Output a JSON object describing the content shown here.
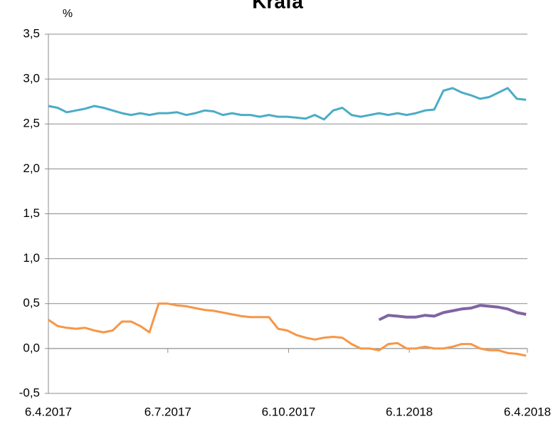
{
  "chart_data": {
    "type": "line",
    "title": "Krafa",
    "y_label": "%",
    "x": [
      "2017-04-06",
      "2017-04-13",
      "2017-04-20",
      "2017-04-27",
      "2017-05-04",
      "2017-05-11",
      "2017-05-18",
      "2017-05-25",
      "2017-06-01",
      "2017-06-08",
      "2017-06-15",
      "2017-06-22",
      "2017-06-29",
      "2017-07-06",
      "2017-07-13",
      "2017-07-20",
      "2017-07-27",
      "2017-08-03",
      "2017-08-10",
      "2017-08-17",
      "2017-08-24",
      "2017-08-31",
      "2017-09-07",
      "2017-09-14",
      "2017-09-21",
      "2017-09-28",
      "2017-10-05",
      "2017-10-12",
      "2017-10-19",
      "2017-10-26",
      "2017-11-02",
      "2017-11-09",
      "2017-11-16",
      "2017-11-23",
      "2017-11-30",
      "2017-12-07",
      "2017-12-14",
      "2017-12-21",
      "2017-12-28",
      "2018-01-04",
      "2018-01-11",
      "2018-01-18",
      "2018-01-25",
      "2018-02-01",
      "2018-02-08",
      "2018-02-15",
      "2018-02-22",
      "2018-03-01",
      "2018-03-08",
      "2018-03-15",
      "2018-03-22",
      "2018-03-29",
      "2018-04-05"
    ],
    "series": [
      {
        "color": "#4bacc6",
        "values": [
          2.7,
          2.68,
          2.63,
          2.65,
          2.67,
          2.7,
          2.68,
          2.65,
          2.62,
          2.6,
          2.62,
          2.6,
          2.62,
          2.62,
          2.63,
          2.6,
          2.62,
          2.65,
          2.64,
          2.6,
          2.62,
          2.6,
          2.6,
          2.58,
          2.6,
          2.58,
          2.58,
          2.57,
          2.56,
          2.6,
          2.55,
          2.65,
          2.68,
          2.6,
          2.58,
          2.6,
          2.62,
          2.6,
          2.62,
          2.6,
          2.62,
          2.65,
          2.66,
          2.87,
          2.9,
          2.85,
          2.82,
          2.78,
          2.8,
          2.85,
          2.9,
          2.78,
          2.77
        ]
      },
      {
        "color": "#f79646",
        "values": [
          0.32,
          0.25,
          0.23,
          0.22,
          0.23,
          0.2,
          0.18,
          0.2,
          0.3,
          0.3,
          0.25,
          0.18,
          0.5,
          0.5,
          0.48,
          0.47,
          0.45,
          0.43,
          0.42,
          0.4,
          0.38,
          0.36,
          0.35,
          0.35,
          0.35,
          0.22,
          0.2,
          0.15,
          0.12,
          0.1,
          0.12,
          0.13,
          0.12,
          0.05,
          0.0,
          0.0,
          -0.02,
          0.05,
          0.06,
          0.0,
          0.0,
          0.02,
          0.0,
          0.0,
          0.02,
          0.05,
          0.05,
          0.0,
          -0.02,
          -0.02,
          -0.05,
          -0.06,
          -0.08
        ]
      },
      {
        "color": "#8064a2",
        "values": [
          null,
          null,
          null,
          null,
          null,
          null,
          null,
          null,
          null,
          null,
          null,
          null,
          null,
          null,
          null,
          null,
          null,
          null,
          null,
          null,
          null,
          null,
          null,
          null,
          null,
          null,
          null,
          null,
          null,
          null,
          null,
          null,
          null,
          null,
          null,
          null,
          0.32,
          0.37,
          0.36,
          0.35,
          0.35,
          0.37,
          0.36,
          0.4,
          0.42,
          0.44,
          0.45,
          0.48,
          0.47,
          0.46,
          0.44,
          0.4,
          0.38
        ]
      }
    ],
    "xlim": [
      "2017-04-06",
      "2018-04-06"
    ],
    "xticks": [
      {
        "value": "2017-04-06",
        "label": "6.4.2017"
      },
      {
        "value": "2017-07-06",
        "label": "6.7.2017"
      },
      {
        "value": "2017-10-06",
        "label": "6.10.2017"
      },
      {
        "value": "2018-01-06",
        "label": "6.1.2018"
      },
      {
        "value": "2018-04-06",
        "label": "6.4.2018"
      }
    ],
    "ylim": [
      -0.5,
      3.5
    ],
    "yticks": [
      {
        "value": -0.5,
        "label": "-0,5"
      },
      {
        "value": 0,
        "label": "0,0"
      },
      {
        "value": 0.5,
        "label": "0,5"
      },
      {
        "value": 1,
        "label": "1,0"
      },
      {
        "value": 1.5,
        "label": "1,5"
      },
      {
        "value": 2,
        "label": "2,0"
      },
      {
        "value": 2.5,
        "label": "2,5"
      },
      {
        "value": 3,
        "label": "3,0"
      },
      {
        "value": 3.5,
        "label": "3,5"
      }
    ],
    "grid": true
  }
}
